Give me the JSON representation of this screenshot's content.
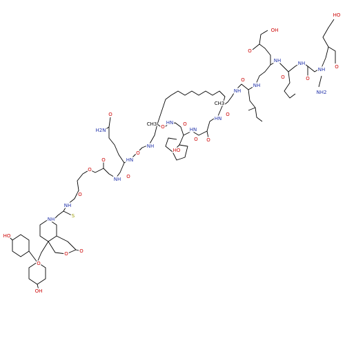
{
  "atom_labels": [
    "HO",
    "NH2",
    "O",
    "NH",
    "O",
    "NH",
    "O",
    "OH",
    "O",
    "NH",
    "NH",
    "O",
    "NH",
    "O",
    "HN",
    "CH3",
    "O",
    "O",
    "HN",
    "O",
    "HO",
    "HN",
    "O",
    "CH3",
    "NH",
    "O",
    "HN",
    "O",
    "H2N",
    "O",
    "NH",
    "O",
    "O",
    "O",
    "NH",
    "S",
    "NH",
    "O",
    "O",
    "O",
    "HO",
    "OH"
  ]
}
